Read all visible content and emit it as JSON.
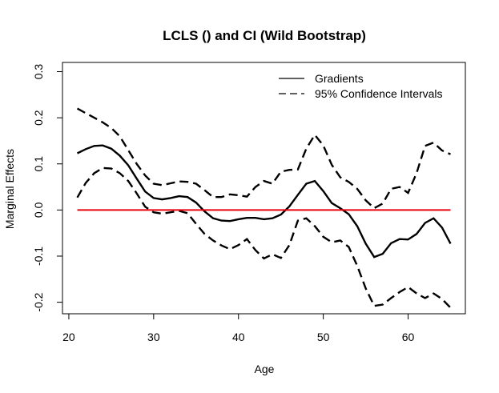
{
  "chart_data": {
    "type": "line",
    "title": "LCLS () and CI (Wild Bootstrap)",
    "xlabel": "Age",
    "ylabel": "Marginal Effects",
    "xlim": [
      19.25,
      66.75
    ],
    "ylim": [
      -0.225,
      0.32
    ],
    "xticks": [
      20,
      30,
      40,
      50,
      60
    ],
    "yticks": [
      -0.2,
      -0.1,
      0.0,
      0.1,
      0.2,
      0.3
    ],
    "ytick_labels": [
      "-0.2",
      "-0.1",
      "0.0",
      "0.1",
      "0.2",
      "0.3"
    ],
    "legend_position": "top-right",
    "x": [
      21,
      22,
      23,
      24,
      25,
      26,
      27,
      28,
      29,
      30,
      31,
      32,
      33,
      34,
      35,
      36,
      37,
      38,
      39,
      40,
      41,
      42,
      43,
      44,
      45,
      46,
      47,
      48,
      49,
      50,
      51,
      52,
      53,
      54,
      55,
      56,
      57,
      58,
      59,
      60,
      61,
      62,
      63,
      64,
      65
    ],
    "series": [
      {
        "name": "Gradients",
        "style": "solid",
        "color": "#000000",
        "values": [
          0.123,
          0.132,
          0.139,
          0.14,
          0.133,
          0.118,
          0.097,
          0.068,
          0.04,
          0.026,
          0.023,
          0.026,
          0.03,
          0.028,
          0.016,
          -0.003,
          -0.018,
          -0.023,
          -0.024,
          -0.02,
          -0.017,
          -0.017,
          -0.02,
          -0.018,
          -0.01,
          0.008,
          0.033,
          0.057,
          0.063,
          0.041,
          0.015,
          0.004,
          -0.009,
          -0.035,
          -0.073,
          -0.102,
          -0.095,
          -0.072,
          -0.063,
          -0.064,
          -0.052,
          -0.028,
          -0.018,
          -0.038,
          -0.073
        ]
      },
      {
        "name": "95% Confidence Intervals",
        "style": "dashed",
        "color": "#000000",
        "values_upper": [
          0.22,
          0.21,
          0.2,
          0.19,
          0.178,
          0.16,
          0.13,
          0.1,
          0.075,
          0.057,
          0.054,
          0.058,
          0.062,
          0.061,
          0.057,
          0.043,
          0.028,
          0.028,
          0.034,
          0.032,
          0.029,
          0.05,
          0.063,
          0.057,
          0.083,
          0.087,
          0.088,
          0.133,
          0.163,
          0.14,
          0.098,
          0.071,
          0.061,
          0.046,
          0.021,
          0.004,
          0.014,
          0.046,
          0.05,
          0.037,
          0.08,
          0.139,
          0.146,
          0.129,
          0.121
        ],
        "values_lower": [
          0.027,
          0.059,
          0.08,
          0.091,
          0.09,
          0.08,
          0.063,
          0.036,
          0.007,
          -0.005,
          -0.008,
          -0.005,
          -0.002,
          -0.007,
          -0.03,
          -0.052,
          -0.066,
          -0.077,
          -0.085,
          -0.076,
          -0.063,
          -0.087,
          -0.105,
          -0.096,
          -0.104,
          -0.076,
          -0.023,
          -0.018,
          -0.035,
          -0.058,
          -0.07,
          -0.066,
          -0.08,
          -0.121,
          -0.17,
          -0.208,
          -0.205,
          -0.191,
          -0.178,
          -0.167,
          -0.181,
          -0.191,
          -0.181,
          -0.193,
          -0.212
        ]
      }
    ],
    "reference_line": {
      "y": 0.0,
      "color": "#e8000b"
    }
  }
}
